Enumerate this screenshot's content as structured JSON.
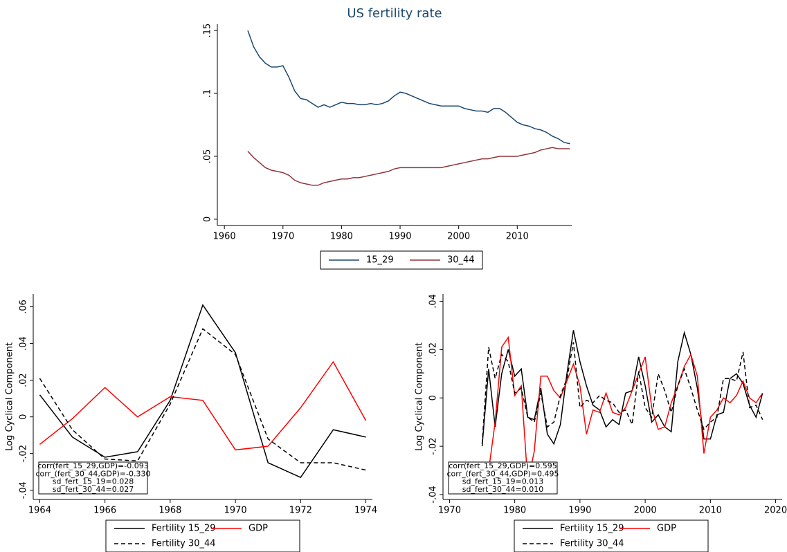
{
  "chart_data": [
    {
      "type": "line",
      "title": "US fertility rate",
      "x": [
        1964,
        1965,
        1966,
        1967,
        1968,
        1969,
        1970,
        1971,
        1972,
        1973,
        1974,
        1975,
        1976,
        1977,
        1978,
        1979,
        1980,
        1981,
        1982,
        1983,
        1984,
        1985,
        1986,
        1987,
        1988,
        1989,
        1990,
        1991,
        1992,
        1993,
        1994,
        1995,
        1996,
        1997,
        1998,
        1999,
        2000,
        2001,
        2002,
        2003,
        2004,
        2005,
        2006,
        2007,
        2008,
        2009,
        2010,
        2011,
        2012,
        2013,
        2014,
        2015,
        2016,
        2017,
        2018,
        2019
      ],
      "series": [
        {
          "name": "15_29",
          "color": "#1a476f",
          "values": [
            0.15,
            0.137,
            0.129,
            0.124,
            0.121,
            0.121,
            0.122,
            0.113,
            0.102,
            0.096,
            0.095,
            0.092,
            0.089,
            0.091,
            0.089,
            0.091,
            0.093,
            0.092,
            0.092,
            0.091,
            0.091,
            0.092,
            0.091,
            0.092,
            0.094,
            0.098,
            0.101,
            0.1,
            0.098,
            0.096,
            0.094,
            0.092,
            0.091,
            0.09,
            0.09,
            0.09,
            0.09,
            0.088,
            0.087,
            0.086,
            0.086,
            0.085,
            0.088,
            0.088,
            0.085,
            0.081,
            0.077,
            0.075,
            0.074,
            0.072,
            0.071,
            0.069,
            0.066,
            0.064,
            0.061,
            0.06
          ]
        },
        {
          "name": "30_44",
          "color": "#90353b",
          "values": [
            0.054,
            0.049,
            0.045,
            0.041,
            0.039,
            0.038,
            0.037,
            0.035,
            0.031,
            0.029,
            0.028,
            0.027,
            0.027,
            0.029,
            0.03,
            0.031,
            0.032,
            0.032,
            0.033,
            0.033,
            0.034,
            0.035,
            0.036,
            0.037,
            0.038,
            0.04,
            0.041,
            0.041,
            0.041,
            0.041,
            0.041,
            0.041,
            0.041,
            0.041,
            0.042,
            0.043,
            0.044,
            0.045,
            0.046,
            0.047,
            0.048,
            0.048,
            0.049,
            0.05,
            0.05,
            0.05,
            0.05,
            0.051,
            0.052,
            0.053,
            0.055,
            0.056,
            0.057,
            0.056,
            0.056,
            0.056
          ]
        }
      ],
      "xlim": [
        1958.8,
        2019.3
      ],
      "xticks": [
        1960,
        1970,
        1980,
        1990,
        2000,
        2010
      ],
      "ylim": [
        -0.005,
        0.155
      ],
      "yticks": [
        0,
        {
          "value": 0.05,
          "label": ".05"
        },
        {
          "value": 0.1,
          "label": ".1"
        },
        {
          "value": 0.15,
          "label": ".15"
        }
      ],
      "legend": "bottom",
      "legend_columns": 2
    },
    {
      "type": "line",
      "y_label": "Log Cyclical Component",
      "x": [
        1964,
        1965,
        1966,
        1967,
        1968,
        1969,
        1970,
        1971,
        1972,
        1973,
        1974
      ],
      "series": [
        {
          "name": "Fertility 15_29",
          "color": "#000000",
          "line_style": "solid",
          "values": [
            0.012,
            -0.011,
            -0.022,
            -0.019,
            0.009,
            0.061,
            0.035,
            -0.025,
            -0.033,
            -0.007,
            -0.011
          ]
        },
        {
          "name": "GDP",
          "color": "#ff0000",
          "line_style": "solid",
          "values": [
            -0.015,
            -0.001,
            0.016,
            0.0,
            0.011,
            0.009,
            -0.018,
            -0.016,
            0.005,
            0.03,
            -0.002
          ]
        },
        {
          "name": "Fertility 30_44",
          "color": "#000000",
          "line_style": "dashed",
          "values": [
            0.021,
            -0.007,
            -0.023,
            -0.024,
            0.007,
            0.048,
            0.034,
            -0.012,
            -0.025,
            -0.025,
            -0.029
          ]
        }
      ],
      "xlim": [
        1963.8,
        1974.2
      ],
      "xticks": [
        1964,
        1966,
        1968,
        1970,
        1972,
        1974
      ],
      "ylim": [
        -0.045,
        0.067
      ],
      "yticks": [
        {
          "value": -0.04,
          "label": "-.04"
        },
        {
          "value": -0.02,
          "label": "-.02"
        },
        0,
        {
          "value": 0.02,
          "label": ".02"
        },
        {
          "value": 0.04,
          "label": ".04"
        },
        {
          "value": 0.06,
          "label": ".06"
        }
      ],
      "annotations": [
        "corr(fert_15_29,GDP)=-0.093",
        "corr_(fert_30_44,GDP)=-0.330",
        "sd_fert_15_19=0.028",
        "sd_fert_30_44=0.027"
      ],
      "legend": "bottom",
      "legend_columns": 2
    },
    {
      "type": "line",
      "y_label": "Log Cyclical Component",
      "x": [
        1975,
        1976,
        1977,
        1978,
        1979,
        1980,
        1981,
        1982,
        1983,
        1984,
        1985,
        1986,
        1987,
        1988,
        1989,
        1990,
        1991,
        1992,
        1993,
        1994,
        1995,
        1996,
        1997,
        1998,
        1999,
        2000,
        2001,
        2002,
        2003,
        2004,
        2005,
        2006,
        2007,
        2008,
        2009,
        2010,
        2011,
        2012,
        2013,
        2014,
        2015,
        2016,
        2017,
        2018
      ],
      "series": [
        {
          "name": "Fertility 15_29",
          "color": "#000000",
          "line_style": "solid",
          "values": [
            -0.02,
            0.012,
            -0.012,
            0.01,
            0.02,
            0.009,
            0.012,
            -0.008,
            -0.009,
            0.004,
            -0.015,
            -0.019,
            -0.011,
            0.01,
            0.028,
            0.015,
            0.005,
            -0.003,
            -0.005,
            -0.012,
            -0.009,
            -0.011,
            0.002,
            0.003,
            0.017,
            0.005,
            -0.01,
            -0.007,
            -0.012,
            -0.014,
            0.015,
            0.027,
            0.018,
            0.004,
            -0.017,
            -0.017,
            -0.007,
            -0.006,
            0.008,
            0.01,
            0.006,
            -0.003,
            -0.008,
            0.002
          ]
        },
        {
          "name": "GDP",
          "color": "#ff0000",
          "line_style": "solid",
          "values": [
            null,
            -0.03,
            -0.01,
            0.021,
            0.025,
            0.001,
            0.005,
            -0.035,
            -0.022,
            0.009,
            0.009,
            0.003,
            0.0,
            0.007,
            0.014,
            0.005,
            -0.015,
            -0.005,
            -0.006,
            0.002,
            -0.006,
            -0.007,
            -0.004,
            0.003,
            0.01,
            0.017,
            -0.004,
            -0.013,
            -0.012,
            -0.002,
            0.005,
            0.013,
            0.018,
            0.009,
            -0.023,
            -0.008,
            -0.005,
            0.0,
            -0.002,
            0.001,
            0.007,
            0.0,
            -0.002,
            0.002
          ]
        },
        {
          "name": "Fertility 30_44",
          "color": "#000000",
          "line_style": "dashed",
          "values": [
            -0.019,
            0.021,
            0.008,
            0.018,
            0.015,
            0.002,
            0.004,
            -0.008,
            -0.01,
            0.002,
            -0.012,
            -0.01,
            0.001,
            0.008,
            0.023,
            -0.004,
            -0.001,
            -0.002,
            0.001,
            -0.001,
            -0.002,
            -0.006,
            -0.005,
            -0.011,
            0.011,
            -0.004,
            -0.008,
            0.01,
            0.003,
            -0.006,
            0.005,
            0.012,
            0.004,
            -0.005,
            -0.013,
            -0.01,
            -0.008,
            0.008,
            0.008,
            0.007,
            0.019,
            -0.004,
            -0.003,
            -0.009
          ]
        }
      ],
      "xlim": [
        1969,
        2021
      ],
      "xticks": [
        1970,
        1980,
        1990,
        2000,
        2010,
        2020
      ],
      "ylim": [
        -0.042,
        0.043
      ],
      "yticks": [
        {
          "value": -0.04,
          "label": "-.04"
        },
        {
          "value": -0.02,
          "label": "-.02"
        },
        0,
        {
          "value": 0.02,
          "label": ".02"
        },
        {
          "value": 0.04,
          "label": ".04"
        }
      ],
      "annotations": [
        "corr(fert_15_29,GDP)=0.595",
        "corr_(fert_30_44,GDP)=0.495",
        "sd_fert_15_19=0.013",
        "sd_fert_30_44=0.010"
      ],
      "legend": "bottom",
      "legend_columns": 2
    }
  ]
}
